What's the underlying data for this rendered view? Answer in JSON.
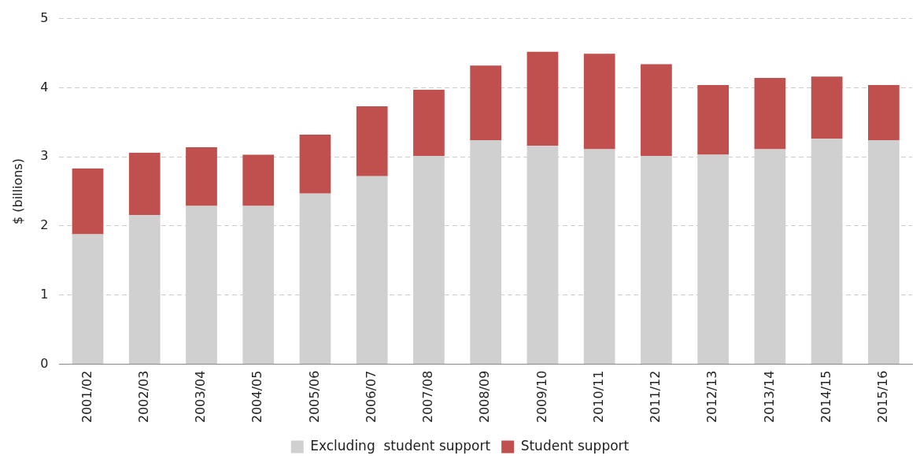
{
  "chart_data": {
    "type": "bar",
    "stacked": true,
    "ylabel": "$ (billions)",
    "categories": [
      "2001/02",
      "2002/03",
      "2003/04",
      "2004/05",
      "2005/06",
      "2006/07",
      "2007/08",
      "2008/09",
      "2009/10",
      "2010/11",
      "2011/12",
      "2012/13",
      "2013/14",
      "2014/15",
      "2015/16"
    ],
    "series": [
      {
        "name": "Excluding  student support",
        "color": "#d0d0d0",
        "values": [
          1.88,
          2.16,
          2.29,
          2.29,
          2.47,
          2.72,
          3.01,
          3.24,
          3.16,
          3.11,
          3.01,
          3.03,
          3.11,
          3.26,
          3.24
        ]
      },
      {
        "name": "Student support",
        "color": "#c0504d",
        "values": [
          0.95,
          0.9,
          0.85,
          0.74,
          0.85,
          1.01,
          0.96,
          1.08,
          1.36,
          1.38,
          1.33,
          1.01,
          1.03,
          0.9,
          0.8
        ]
      }
    ],
    "ylim": [
      0,
      5
    ],
    "yticks": [
      0,
      1,
      2,
      3,
      4,
      5
    ],
    "grid": "y",
    "legend": "bottom"
  }
}
